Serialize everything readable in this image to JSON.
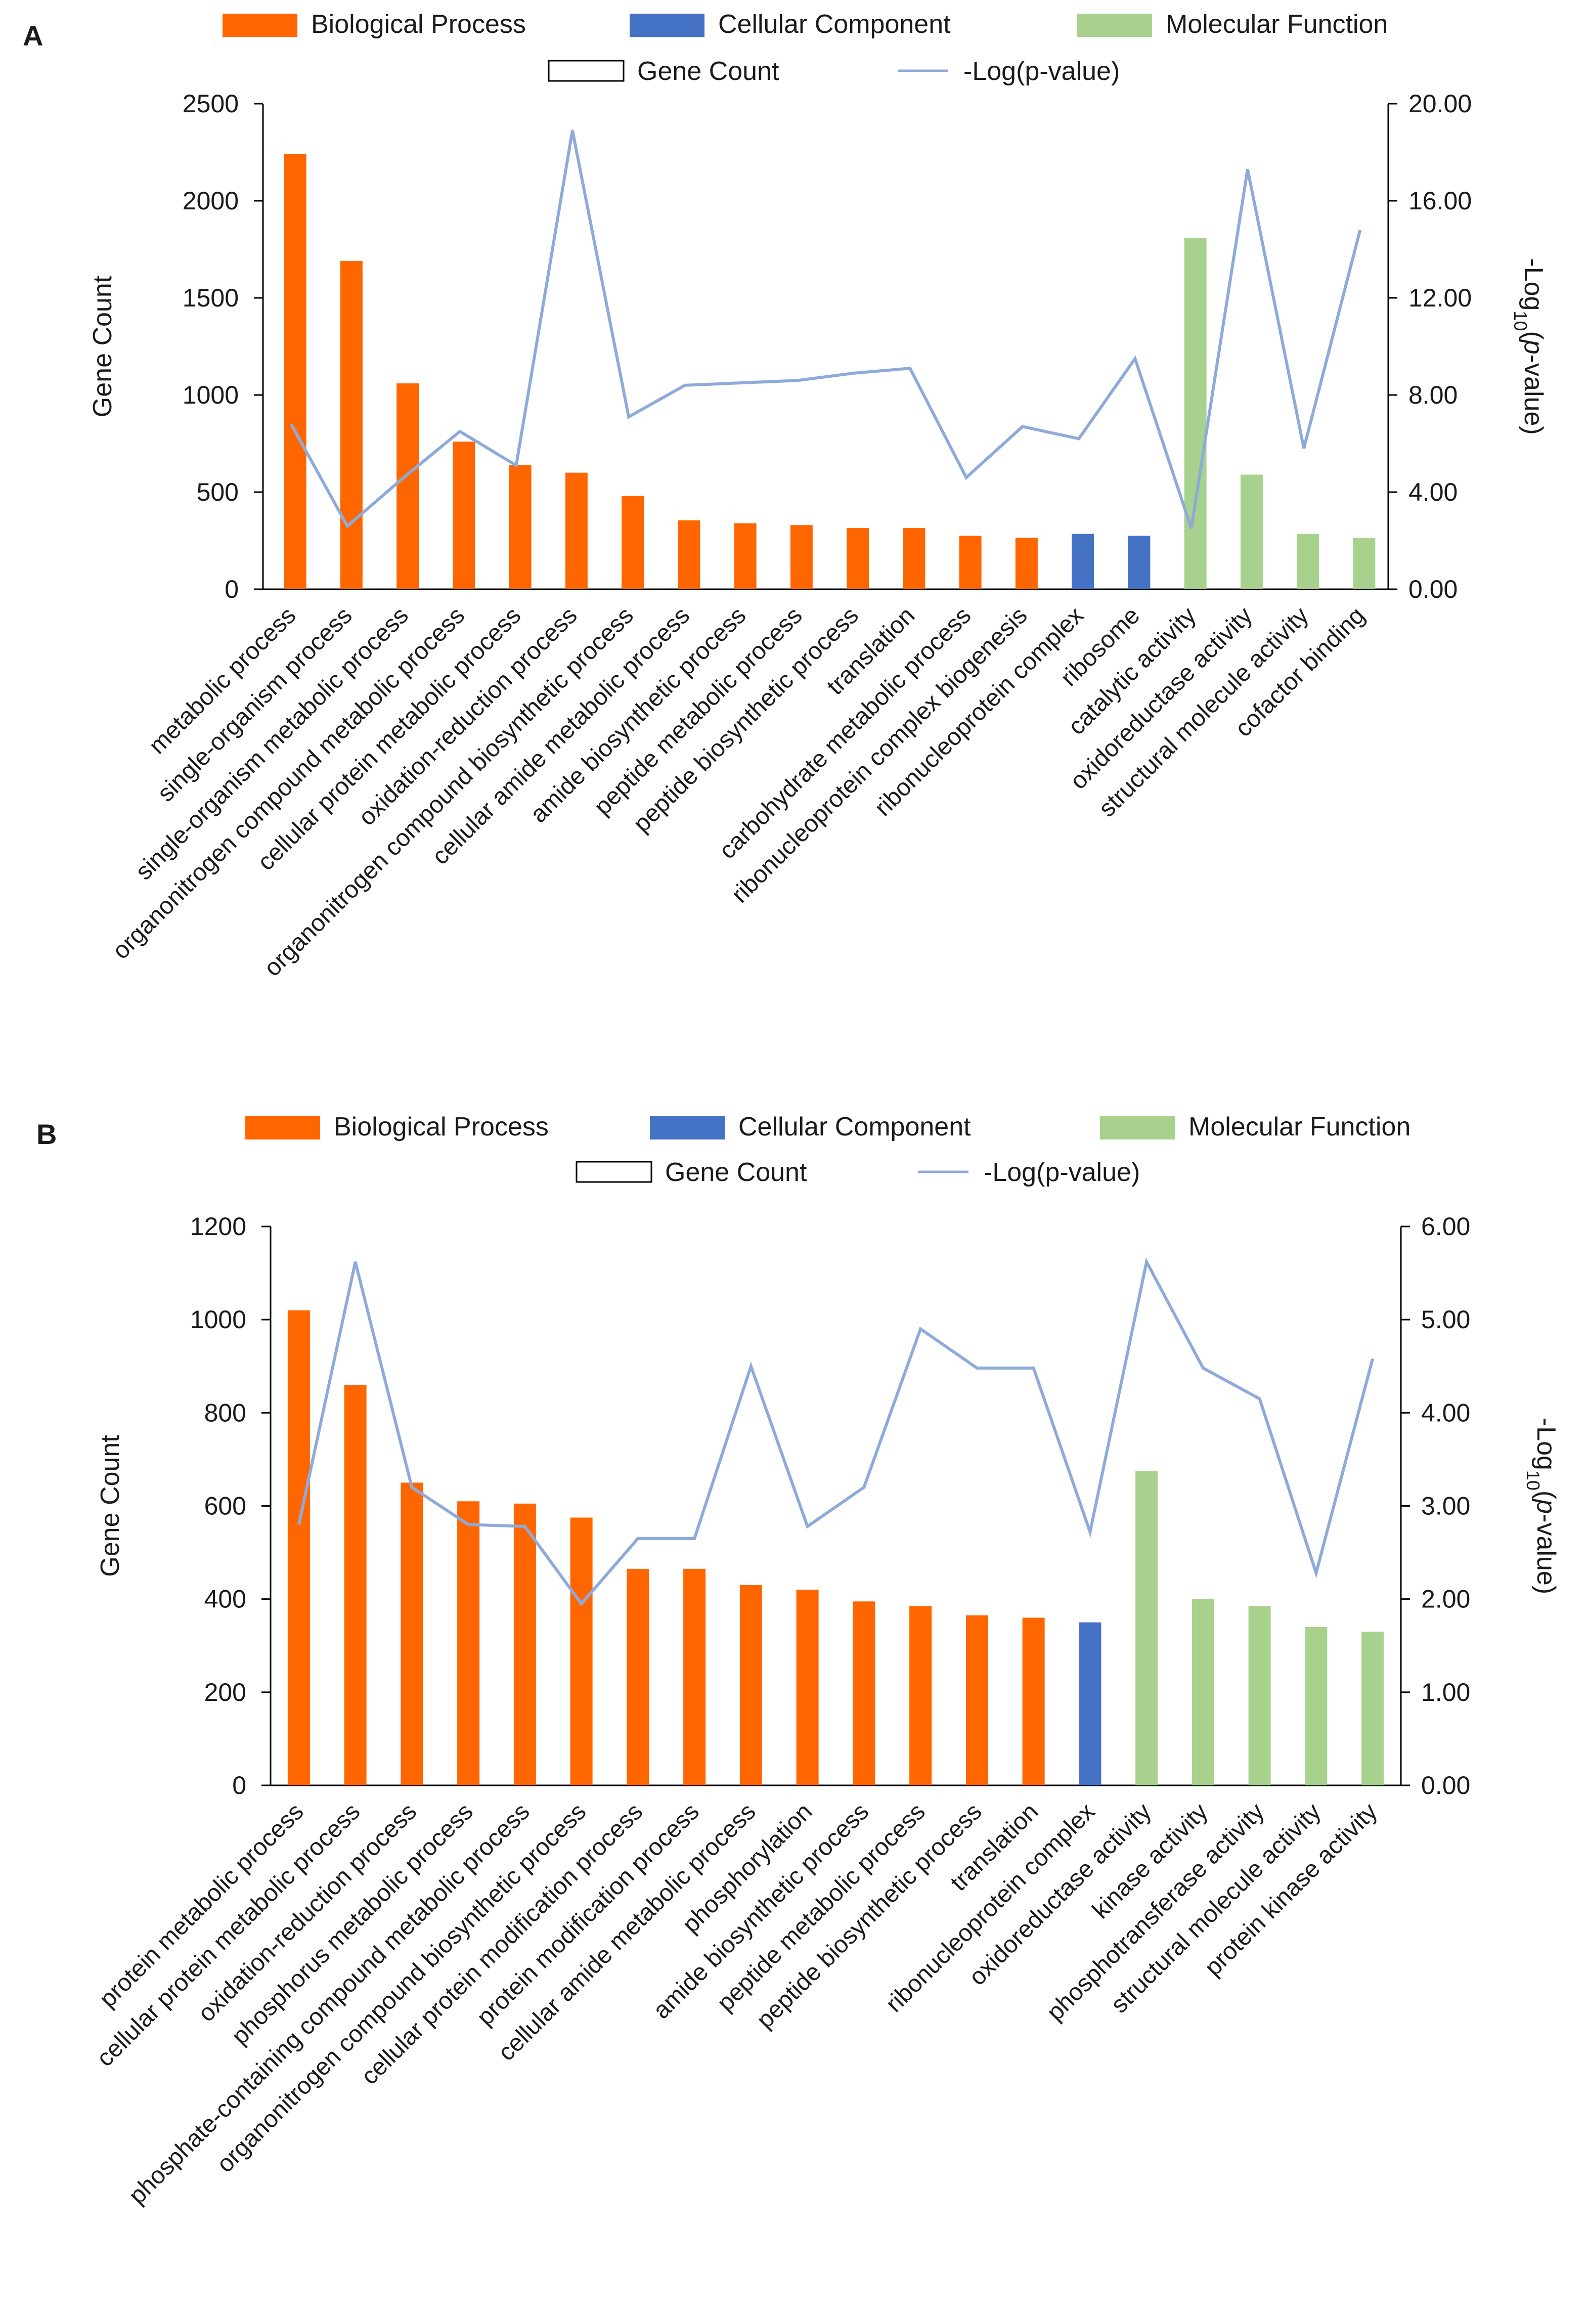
{
  "colors": {
    "bp": "#ff6600",
    "cc": "#4472c4",
    "mf": "#a9d18e",
    "line": "#8eaadb",
    "axis": "#000000",
    "text": "#1a1a1a"
  },
  "chart_data": [
    {
      "panel": "A",
      "type": "bar",
      "legend": {
        "bp": "Biological Process",
        "cc": "Cellular Component",
        "mf": "Molecular Function",
        "count": "Gene Count",
        "line": "-Log(p-value)"
      },
      "ylabel": "Gene Count",
      "y2label": "-Log10(p-value)",
      "ylim": [
        0,
        2500
      ],
      "yticks": [
        "0",
        "500",
        "1000",
        "1500",
        "2000",
        "2500"
      ],
      "y2lim": [
        0,
        20
      ],
      "y2ticks": [
        "0.00",
        "4.00",
        "8.00",
        "12.00",
        "16.00",
        "20.00"
      ],
      "categories": [
        "metabolic process",
        "single-organism process",
        "single-organism metabolic process",
        "organonitrogen compound metabolic process",
        "cellular protein metabolic process",
        "oxidation-reduction process",
        "organonitrogen compound biosynthetic process",
        "cellular amide metabolic process",
        "amide biosynthetic process",
        "peptide metabolic process",
        "peptide biosynthetic process",
        "translation",
        "carbohydrate metabolic process",
        "ribonucleoprotein complex biogenesis",
        "ribonucleoprotein complex",
        "ribosome",
        "catalytic activity",
        "oxidoreductase activity",
        "structural molecule activity",
        "cofactor binding"
      ],
      "groups": [
        "bp",
        "bp",
        "bp",
        "bp",
        "bp",
        "bp",
        "bp",
        "bp",
        "bp",
        "bp",
        "bp",
        "bp",
        "bp",
        "bp",
        "cc",
        "cc",
        "mf",
        "mf",
        "mf",
        "mf"
      ],
      "series": [
        {
          "name": "Gene Count",
          "values": [
            2240,
            1690,
            1060,
            760,
            640,
            600,
            480,
            355,
            340,
            330,
            315,
            315,
            275,
            265,
            285,
            275,
            1810,
            590,
            285,
            265
          ]
        },
        {
          "name": "-Log(p-value)",
          "values": [
            6.8,
            2.6,
            4.6,
            6.5,
            5.1,
            18.9,
            7.1,
            8.4,
            8.5,
            8.6,
            8.9,
            9.1,
            4.6,
            6.7,
            6.2,
            9.5,
            2.5,
            17.3,
            5.8,
            14.8
          ]
        }
      ]
    },
    {
      "panel": "B",
      "type": "bar",
      "legend": {
        "bp": "Biological Process",
        "cc": "Cellular Component",
        "mf": "Molecular Function",
        "count": "Gene Count",
        "line": "-Log(p-value)"
      },
      "ylabel": "Gene Count",
      "y2label": "-Log10(p-value)",
      "ylim": [
        0,
        1200
      ],
      "yticks": [
        "0",
        "200",
        "400",
        "600",
        "800",
        "1000",
        "1200"
      ],
      "y2lim": [
        0,
        6
      ],
      "y2ticks": [
        "0.00",
        "1.00",
        "2.00",
        "3.00",
        "4.00",
        "5.00",
        "6.00"
      ],
      "categories": [
        "protein metabolic process",
        "cellular protein metabolic process",
        "oxidation-reduction process",
        "phosphorus metabolic process",
        "phosphate-containing compound metabolic process",
        "organonitrogen compound biosynthetic process",
        "cellular protein modification process",
        "protein modification process",
        "cellular amide metabolic process",
        "phosphorylation",
        "amide biosynthetic process",
        "peptide metabolic process",
        "peptide biosynthetic process",
        "translation",
        "ribonucleoprotein complex",
        "oxidoreductase activity",
        "kinase activity",
        "phosphotransferase activity",
        "structural molecule activity",
        "protein kinase activity"
      ],
      "groups": [
        "bp",
        "bp",
        "bp",
        "bp",
        "bp",
        "bp",
        "bp",
        "bp",
        "bp",
        "bp",
        "bp",
        "bp",
        "bp",
        "bp",
        "cc",
        "mf",
        "mf",
        "mf",
        "mf",
        "mf"
      ],
      "series": [
        {
          "name": "Gene Count",
          "values": [
            1020,
            860,
            650,
            610,
            605,
            575,
            465,
            465,
            430,
            420,
            395,
            385,
            365,
            360,
            350,
            675,
            400,
            385,
            340,
            330
          ]
        },
        {
          "name": "-Log(p-value)",
          "values": [
            2.8,
            5.62,
            3.2,
            2.8,
            2.78,
            1.95,
            2.65,
            2.65,
            4.5,
            2.78,
            3.2,
            4.9,
            4.48,
            4.48,
            2.72,
            5.62,
            4.48,
            4.15,
            2.28,
            4.58
          ]
        }
      ]
    }
  ]
}
